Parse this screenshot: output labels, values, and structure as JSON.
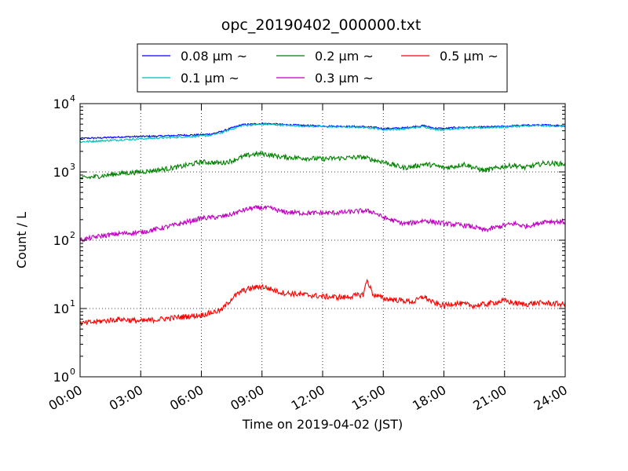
{
  "chart_data": {
    "type": "line",
    "title": "opc_20190402_000000.txt",
    "xlabel": "Time on 2019-04-02 (JST)",
    "ylabel": "Count / L",
    "x_unit": "hours",
    "xlim": [
      0,
      24
    ],
    "ylim": [
      1,
      10000
    ],
    "yscale": "log",
    "grid": true,
    "legend_position": "top-center",
    "x_ticks": [
      {
        "v": 0,
        "label": "00:00"
      },
      {
        "v": 3,
        "label": "03:00"
      },
      {
        "v": 6,
        "label": "06:00"
      },
      {
        "v": 9,
        "label": "09:00"
      },
      {
        "v": 12,
        "label": "12:00"
      },
      {
        "v": 15,
        "label": "15:00"
      },
      {
        "v": 18,
        "label": "18:00"
      },
      {
        "v": 21,
        "label": "21:00"
      },
      {
        "v": 24,
        "label": "24:00"
      }
    ],
    "y_ticks": [
      {
        "v": 1,
        "base": "10",
        "exp": "0"
      },
      {
        "v": 10,
        "base": "10",
        "exp": "1"
      },
      {
        "v": 100,
        "base": "10",
        "exp": "2"
      },
      {
        "v": 1000,
        "base": "10",
        "exp": "3"
      },
      {
        "v": 10000,
        "base": "10",
        "exp": "4"
      }
    ],
    "series": [
      {
        "name": "0.08 μm ~",
        "color": "#0000ff",
        "x": [
          0,
          1,
          2,
          3,
          4,
          5,
          6,
          6.5,
          7,
          7.5,
          8,
          8.5,
          9,
          9.5,
          10,
          11,
          12,
          13,
          14,
          14.5,
          15,
          16,
          16.5,
          17,
          17.5,
          18,
          18.5,
          19,
          19.5,
          20,
          21,
          21.5,
          22,
          22.5,
          23,
          24
        ],
        "y": [
          3100,
          3150,
          3250,
          3300,
          3350,
          3450,
          3500,
          3600,
          3900,
          4400,
          4900,
          5000,
          5100,
          5050,
          4950,
          4800,
          4700,
          4650,
          4600,
          4500,
          4300,
          4400,
          4600,
          4750,
          4400,
          4300,
          4450,
          4500,
          4500,
          4550,
          4650,
          4750,
          4800,
          4850,
          4850,
          4750
        ]
      },
      {
        "name": "0.1 μm ~",
        "color": "#00bfbf",
        "x": [
          0,
          1,
          2,
          3,
          4,
          5,
          6,
          6.5,
          7,
          7.5,
          8,
          8.5,
          9,
          9.5,
          10,
          11,
          12,
          13,
          14,
          14.5,
          15,
          16,
          16.5,
          17,
          17.5,
          18,
          18.5,
          19,
          19.5,
          20,
          21,
          21.5,
          22,
          22.5,
          23,
          24
        ],
        "y": [
          2750,
          2850,
          2950,
          3050,
          3150,
          3250,
          3350,
          3450,
          3750,
          4250,
          4750,
          4900,
          5000,
          4950,
          4850,
          4700,
          4600,
          4550,
          4500,
          4400,
          4150,
          4250,
          4450,
          4600,
          4250,
          4150,
          4300,
          4400,
          4400,
          4450,
          4550,
          4650,
          4700,
          4750,
          4750,
          4650
        ]
      },
      {
        "name": "0.2 μm ~",
        "color": "#008000",
        "x": [
          0,
          1,
          2,
          3,
          4,
          5,
          6,
          7,
          7.5,
          8,
          8.5,
          9,
          9.5,
          10,
          11,
          12,
          13,
          14,
          14.5,
          15,
          16,
          16.5,
          17,
          17.5,
          18,
          18.5,
          19,
          19.5,
          20,
          21,
          21.5,
          22,
          22.5,
          23,
          24
        ],
        "y": [
          800,
          870,
          950,
          1000,
          1080,
          1200,
          1400,
          1350,
          1450,
          1650,
          1800,
          1850,
          1750,
          1650,
          1600,
          1550,
          1600,
          1650,
          1500,
          1400,
          1150,
          1200,
          1300,
          1250,
          1150,
          1200,
          1300,
          1150,
          1050,
          1200,
          1250,
          1150,
          1250,
          1350,
          1300
        ]
      },
      {
        "name": "0.3 μm ~",
        "color": "#bf00bf",
        "x": [
          0,
          1,
          2,
          3,
          4,
          5,
          6,
          7,
          7.5,
          8,
          8.5,
          9,
          9.5,
          10,
          11,
          12,
          13,
          14,
          14.5,
          15,
          16,
          16.5,
          17,
          17.5,
          18,
          18.5,
          19,
          19.5,
          20,
          21,
          21.5,
          22,
          22.5,
          23,
          24
        ],
        "y": [
          100,
          115,
          125,
          130,
          150,
          175,
          210,
          220,
          240,
          270,
          295,
          300,
          290,
          260,
          250,
          250,
          255,
          270,
          260,
          215,
          175,
          180,
          195,
          185,
          175,
          170,
          165,
          155,
          140,
          165,
          175,
          160,
          170,
          190,
          185
        ]
      },
      {
        "name": "0.5 μm ~",
        "color": "#ff0000",
        "x": [
          0,
          1,
          2,
          3,
          4,
          5,
          6,
          7,
          7.5,
          8,
          8.5,
          9,
          9.5,
          10,
          11,
          12,
          13,
          14,
          14.2,
          14.5,
          15,
          16,
          16.5,
          17,
          17.5,
          18,
          18.5,
          19,
          19.5,
          20,
          21,
          21.5,
          22,
          22.5,
          23,
          24
        ],
        "y": [
          6,
          6.5,
          7,
          6.5,
          7,
          7.5,
          8,
          9.5,
          14,
          18,
          20,
          21,
          19,
          17,
          16,
          15,
          14.5,
          16,
          26,
          16,
          14,
          13,
          12.5,
          15,
          12,
          11,
          12,
          11.5,
          11,
          11.5,
          13,
          12,
          11.5,
          12,
          12,
          11.5
        ]
      }
    ]
  }
}
